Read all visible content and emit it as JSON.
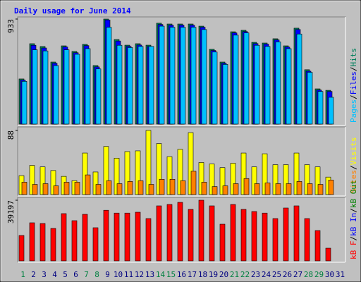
{
  "title": "Daily usage for June 2014",
  "separator": "/",
  "chart_data": [
    {
      "type": "bar",
      "ylim": [
        0,
        933
      ],
      "yticks": [
        933
      ],
      "series": [
        {
          "name": "Pages",
          "color": "#00c0ff",
          "values": [
            380,
            660,
            650,
            520,
            660,
            620,
            670,
            490,
            860,
            700,
            680,
            690,
            690,
            870,
            860,
            860,
            860,
            840,
            640,
            530,
            790,
            810,
            700,
            690,
            730,
            670,
            800,
            460,
            290,
            238,
            0
          ]
        },
        {
          "name": "Files",
          "color": "#0000ff",
          "values": [
            390,
            700,
            676,
            540,
            685,
            634,
            697,
            508,
            925,
            738,
            690,
            702,
            690,
            885,
            878,
            878,
            878,
            860,
            654,
            540,
            810,
            822,
            715,
            710,
            748,
            684,
            840,
            470,
            302,
            290,
            0
          ]
        },
        {
          "name": "Hits",
          "color": "#00805c",
          "values": [
            401,
            714,
            689,
            551,
            695,
            645,
            708,
            520,
            933,
            751,
            701,
            714,
            701,
            896,
            889,
            889,
            889,
            870,
            664,
            551,
            820,
            833,
            726,
            720,
            758,
            695,
            852,
            483,
            313,
            300,
            0
          ]
        }
      ]
    },
    {
      "type": "bar",
      "ylim": [
        0,
        88
      ],
      "yticks": [
        88
      ],
      "series": [
        {
          "name": "Sites",
          "color": "#ff8000",
          "values": [
            17,
            14,
            15,
            12,
            17,
            17,
            27,
            14,
            19,
            15,
            18,
            19,
            14,
            21,
            21,
            19,
            32,
            17,
            11,
            12,
            15,
            22,
            15,
            16,
            15,
            15,
            18,
            15,
            14,
            20,
            0
          ]
        },
        {
          "name": "Visits",
          "color": "#ffff00",
          "values": [
            26,
            40,
            38,
            33,
            25,
            19,
            57,
            31,
            66,
            50,
            59,
            60,
            88,
            70,
            52,
            62,
            85,
            44,
            42,
            37,
            43,
            57,
            38,
            56,
            41,
            41,
            57,
            41,
            38,
            24,
            0
          ]
        }
      ]
    },
    {
      "type": "bar",
      "ylim": [
        0,
        39197
      ],
      "yticks": [
        39197
      ],
      "categories": [
        "1",
        "2",
        "3",
        "4",
        "5",
        "6",
        "7",
        "8",
        "9",
        "10",
        "11",
        "12",
        "13",
        "14",
        "15",
        "16",
        "17",
        "18",
        "19",
        "20",
        "21",
        "22",
        "23",
        "24",
        "25",
        "26",
        "27",
        "28",
        "29",
        "30",
        "31"
      ],
      "category_colors": [
        "#008040",
        "#000080",
        "#000080",
        "#000080",
        "#000080",
        "#000080",
        "#008040",
        "#008040",
        "#000080",
        "#000080",
        "#000080",
        "#000080",
        "#000080",
        "#008040",
        "#008040",
        "#000080",
        "#000080",
        "#000080",
        "#000080",
        "#000080",
        "#008040",
        "#008040",
        "#000080",
        "#000080",
        "#000080",
        "#000080",
        "#000080",
        "#008040",
        "#008040",
        "#000080",
        "#000080"
      ],
      "series": [
        {
          "name": "kB F",
          "color": "#ff0000",
          "values": [
            16408,
            24612,
            24156,
            20966,
            30536,
            25978,
            30080,
            21422,
            32726,
            30900,
            30900,
            31450,
            27346,
            35550,
            36460,
            37826,
            33270,
            39197,
            35550,
            23700,
            36460,
            33270,
            31900,
            30900,
            27346,
            34180,
            35550,
            27346,
            19600,
            8200,
            0
          ]
        }
      ],
      "legend_extra": [
        {
          "name": "kB In",
          "color": "#0000ff"
        },
        {
          "name": "kB Out",
          "color": "#008000"
        }
      ]
    }
  ]
}
